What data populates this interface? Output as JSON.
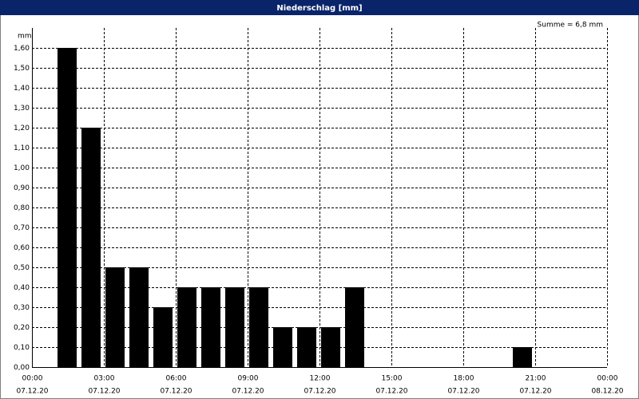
{
  "chart_data": {
    "type": "bar",
    "title": "Niederschlag [mm]",
    "y_unit": "mm",
    "annotation": "Summe = 6,8 mm",
    "x": [
      1,
      2,
      3,
      4,
      5,
      6,
      7,
      8,
      9,
      10,
      11,
      12,
      13,
      20
    ],
    "values": [
      1.6,
      1.2,
      0.5,
      0.5,
      0.3,
      0.4,
      0.4,
      0.4,
      0.4,
      0.2,
      0.2,
      0.2,
      0.4,
      0.1
    ],
    "color": "#000000",
    "xlim": [
      0,
      24
    ],
    "xticks": [
      {
        "value": 0,
        "label": "00:00",
        "date": "07.12.20"
      },
      {
        "value": 3,
        "label": "03:00",
        "date": "07.12.20"
      },
      {
        "value": 6,
        "label": "06:00",
        "date": "07.12.20"
      },
      {
        "value": 9,
        "label": "09:00",
        "date": "07.12.20"
      },
      {
        "value": 12,
        "label": "12:00",
        "date": "07.12.20"
      },
      {
        "value": 15,
        "label": "15:00",
        "date": "07.12.20"
      },
      {
        "value": 18,
        "label": "18:00",
        "date": "07.12.20"
      },
      {
        "value": 21,
        "label": "21:00",
        "date": "07.12.20"
      },
      {
        "value": 24,
        "label": "00:00",
        "date": "08.12.20"
      }
    ],
    "ylim": [
      0,
      1.7
    ],
    "yticks": [
      {
        "value": 0,
        "label": "0,00"
      },
      {
        "value": 0.1,
        "label": "0,10"
      },
      {
        "value": 0.2,
        "label": "0,20"
      },
      {
        "value": 0.3,
        "label": "0,30"
      },
      {
        "value": 0.4,
        "label": "0,40"
      },
      {
        "value": 0.5,
        "label": "0,50"
      },
      {
        "value": 0.6,
        "label": "0,60"
      },
      {
        "value": 0.7,
        "label": "0,70"
      },
      {
        "value": 0.8,
        "label": "0,80"
      },
      {
        "value": 0.9,
        "label": "0,90"
      },
      {
        "value": 1.0,
        "label": "1,00"
      },
      {
        "value": 1.1,
        "label": "1,10"
      },
      {
        "value": 1.2,
        "label": "1,20"
      },
      {
        "value": 1.3,
        "label": "1,30"
      },
      {
        "value": 1.4,
        "label": "1,40"
      },
      {
        "value": 1.5,
        "label": "1,50"
      },
      {
        "value": 1.6,
        "label": "1,60"
      }
    ],
    "grid": true
  }
}
